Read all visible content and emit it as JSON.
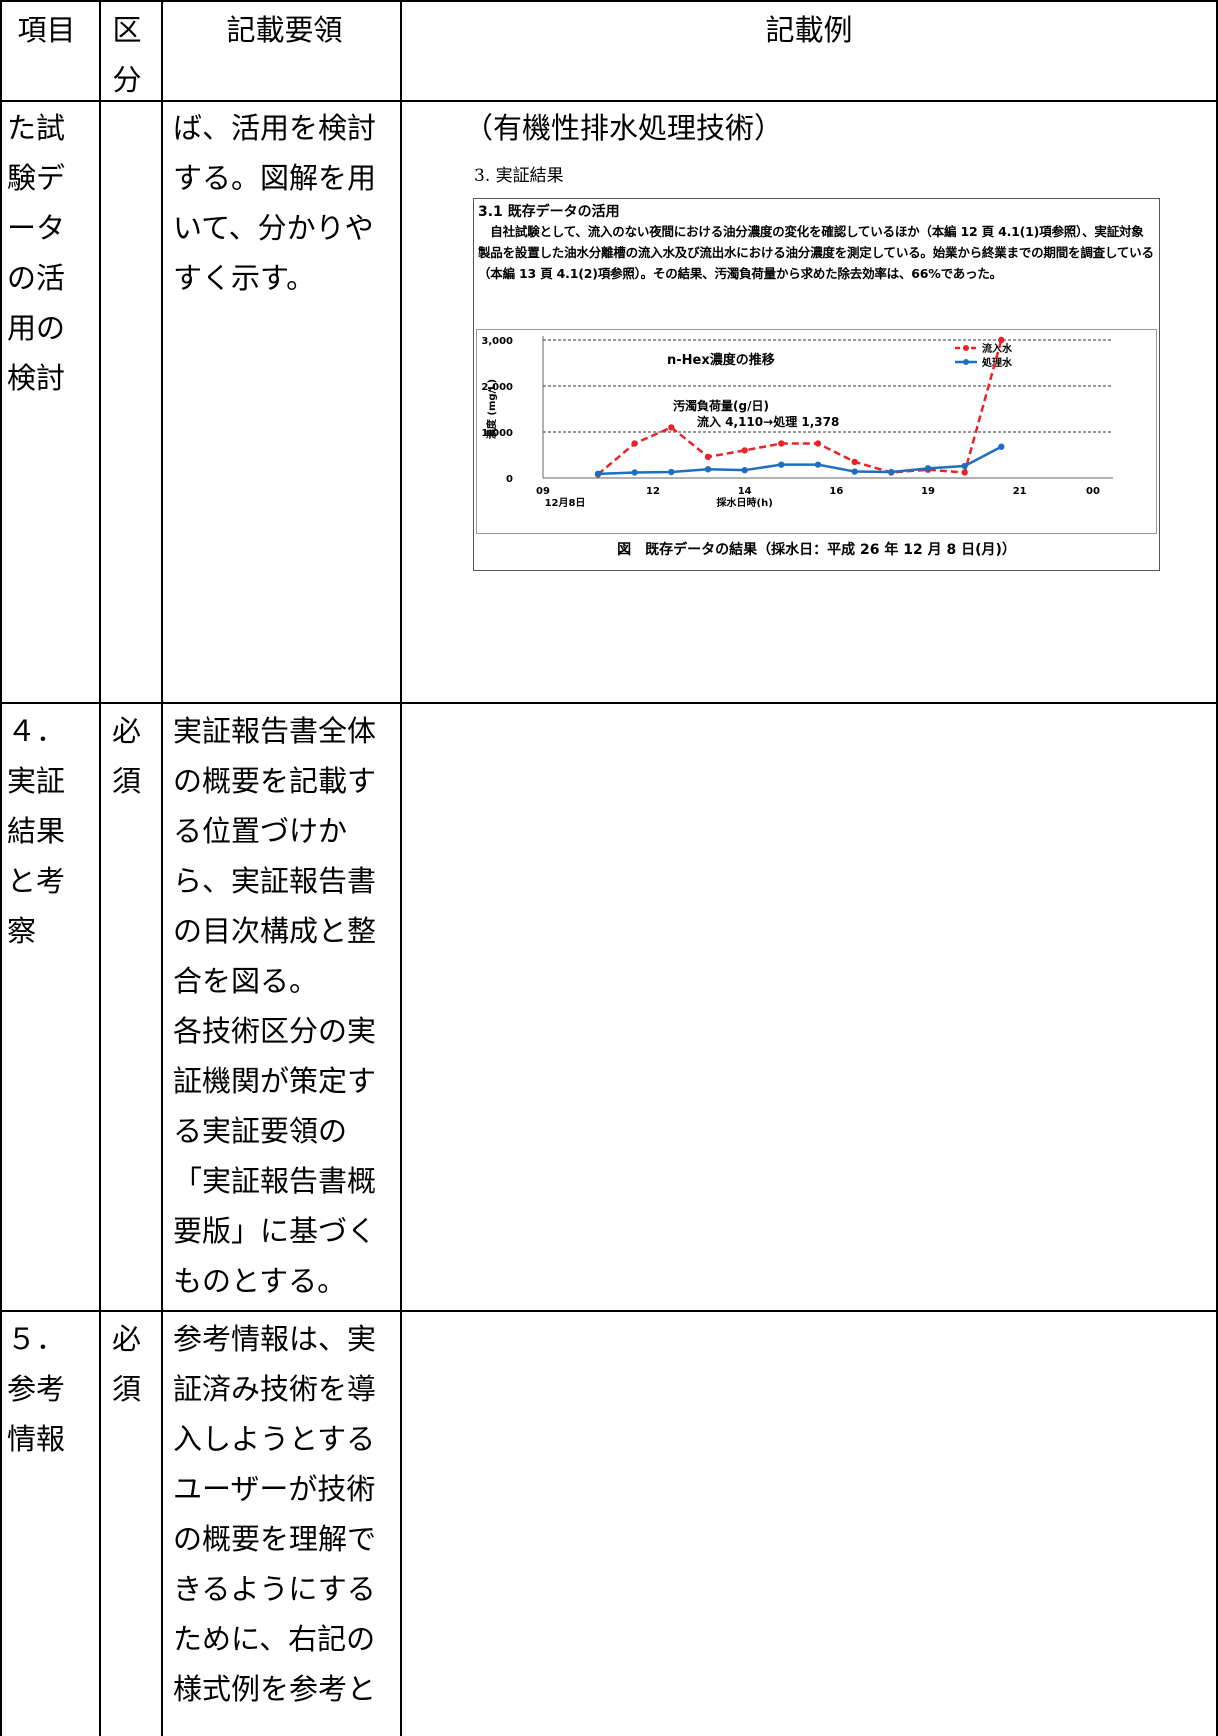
{
  "header": {
    "col_item": "項目",
    "col_category_lines": [
      "区",
      "分"
    ],
    "col_instructions": "記載要領",
    "col_example": "記載例"
  },
  "rows": [
    {
      "item_lines": [
        "た試",
        "験デ",
        "ータ",
        "の活",
        "用の",
        "検討"
      ],
      "category_lines": [],
      "instruction_lines": [
        "ば、活用を検討",
        "する。図解を用",
        "いて、分かりや",
        "すく示す。"
      ]
    },
    {
      "item_lines": [
        "４．",
        "実証",
        "結果",
        "と考",
        "察"
      ],
      "category_lines": [
        "必",
        "須"
      ],
      "instruction_lines": [
        "実証報告書全体",
        "の概要を記載す",
        "る位置づけか",
        "ら、実証報告書",
        "の目次構成と整",
        "合を図る。",
        "各技術区分の実",
        "証機関が策定す",
        "る実証要領の",
        "「実証報告書概",
        "要版」に基づく",
        "ものとする。"
      ]
    },
    {
      "item_lines": [
        "５．",
        "参考",
        "情報"
      ],
      "category_lines": [
        "必",
        "須"
      ],
      "instruction_lines": [
        "参考情報は、実",
        "証済み技術を導",
        "入しようとする",
        "ユーザーが技術",
        "の概要を理解で",
        "きるようにする",
        "ために、右記の",
        "様式例を参考と"
      ]
    }
  ],
  "example": {
    "title": "（有機性排水処理技術）",
    "section": "3. 実証結果",
    "box_heading": "3.1 既存データの活用",
    "box_paragraph": "　自社試験として、流入のない夜間における油分濃度の変化を確認しているほか（本編 12 頁 4.1(1)項参照）、実証対象製品を設置した油水分離槽の流入水及び流出水における油分濃度を測定している。始業から終業までの期間を調査している（本編 13 頁 4.1(2)項参照）。その結果、汚濁負荷量から求めた除去効率は、66%であった。",
    "figure_caption": "図　既存データの結果（採水日：平成 26 年 12 月 8 日(月)）"
  },
  "chart_data": {
    "type": "line",
    "title": "n-Hex濃度の推移",
    "xlabel": "採水日時(h)",
    "ylabel": "濃度 (mg/L)",
    "x_tick_labels": [
      "09",
      "12",
      "14",
      "16",
      "19",
      "21",
      "00"
    ],
    "x_sub_label": "12月8日",
    "ylim": [
      0,
      3000
    ],
    "y_ticks": [
      0,
      1000,
      2000,
      3000
    ],
    "y_tick_labels": [
      "0",
      "1,000",
      "2,000",
      "3,000"
    ],
    "grid": "horizontal dashed",
    "legend_position": "top-right",
    "annotation_lines": [
      "汚濁負荷量(g/日)",
      "流入 4,110→処理 1,378"
    ],
    "series": [
      {
        "name": "流入水",
        "color": "#e8232a",
        "style": "dashed",
        "x": [
          10.5,
          11.5,
          12.5,
          13.5,
          14.5,
          15.5,
          16.5,
          17.5,
          18.5,
          19.5,
          20.5,
          21.5
        ],
        "y": [
          80,
          750,
          1100,
          460,
          600,
          750,
          750,
          350,
          120,
          180,
          120,
          3000
        ]
      },
      {
        "name": "処理水",
        "color": "#1f6fc0",
        "style": "solid",
        "x": [
          10.5,
          11.5,
          12.5,
          13.5,
          14.5,
          15.5,
          16.5,
          17.5,
          18.5,
          19.5,
          20.5,
          21.5
        ],
        "y": [
          90,
          120,
          130,
          190,
          170,
          290,
          290,
          140,
          130,
          210,
          260,
          680
        ]
      }
    ]
  }
}
